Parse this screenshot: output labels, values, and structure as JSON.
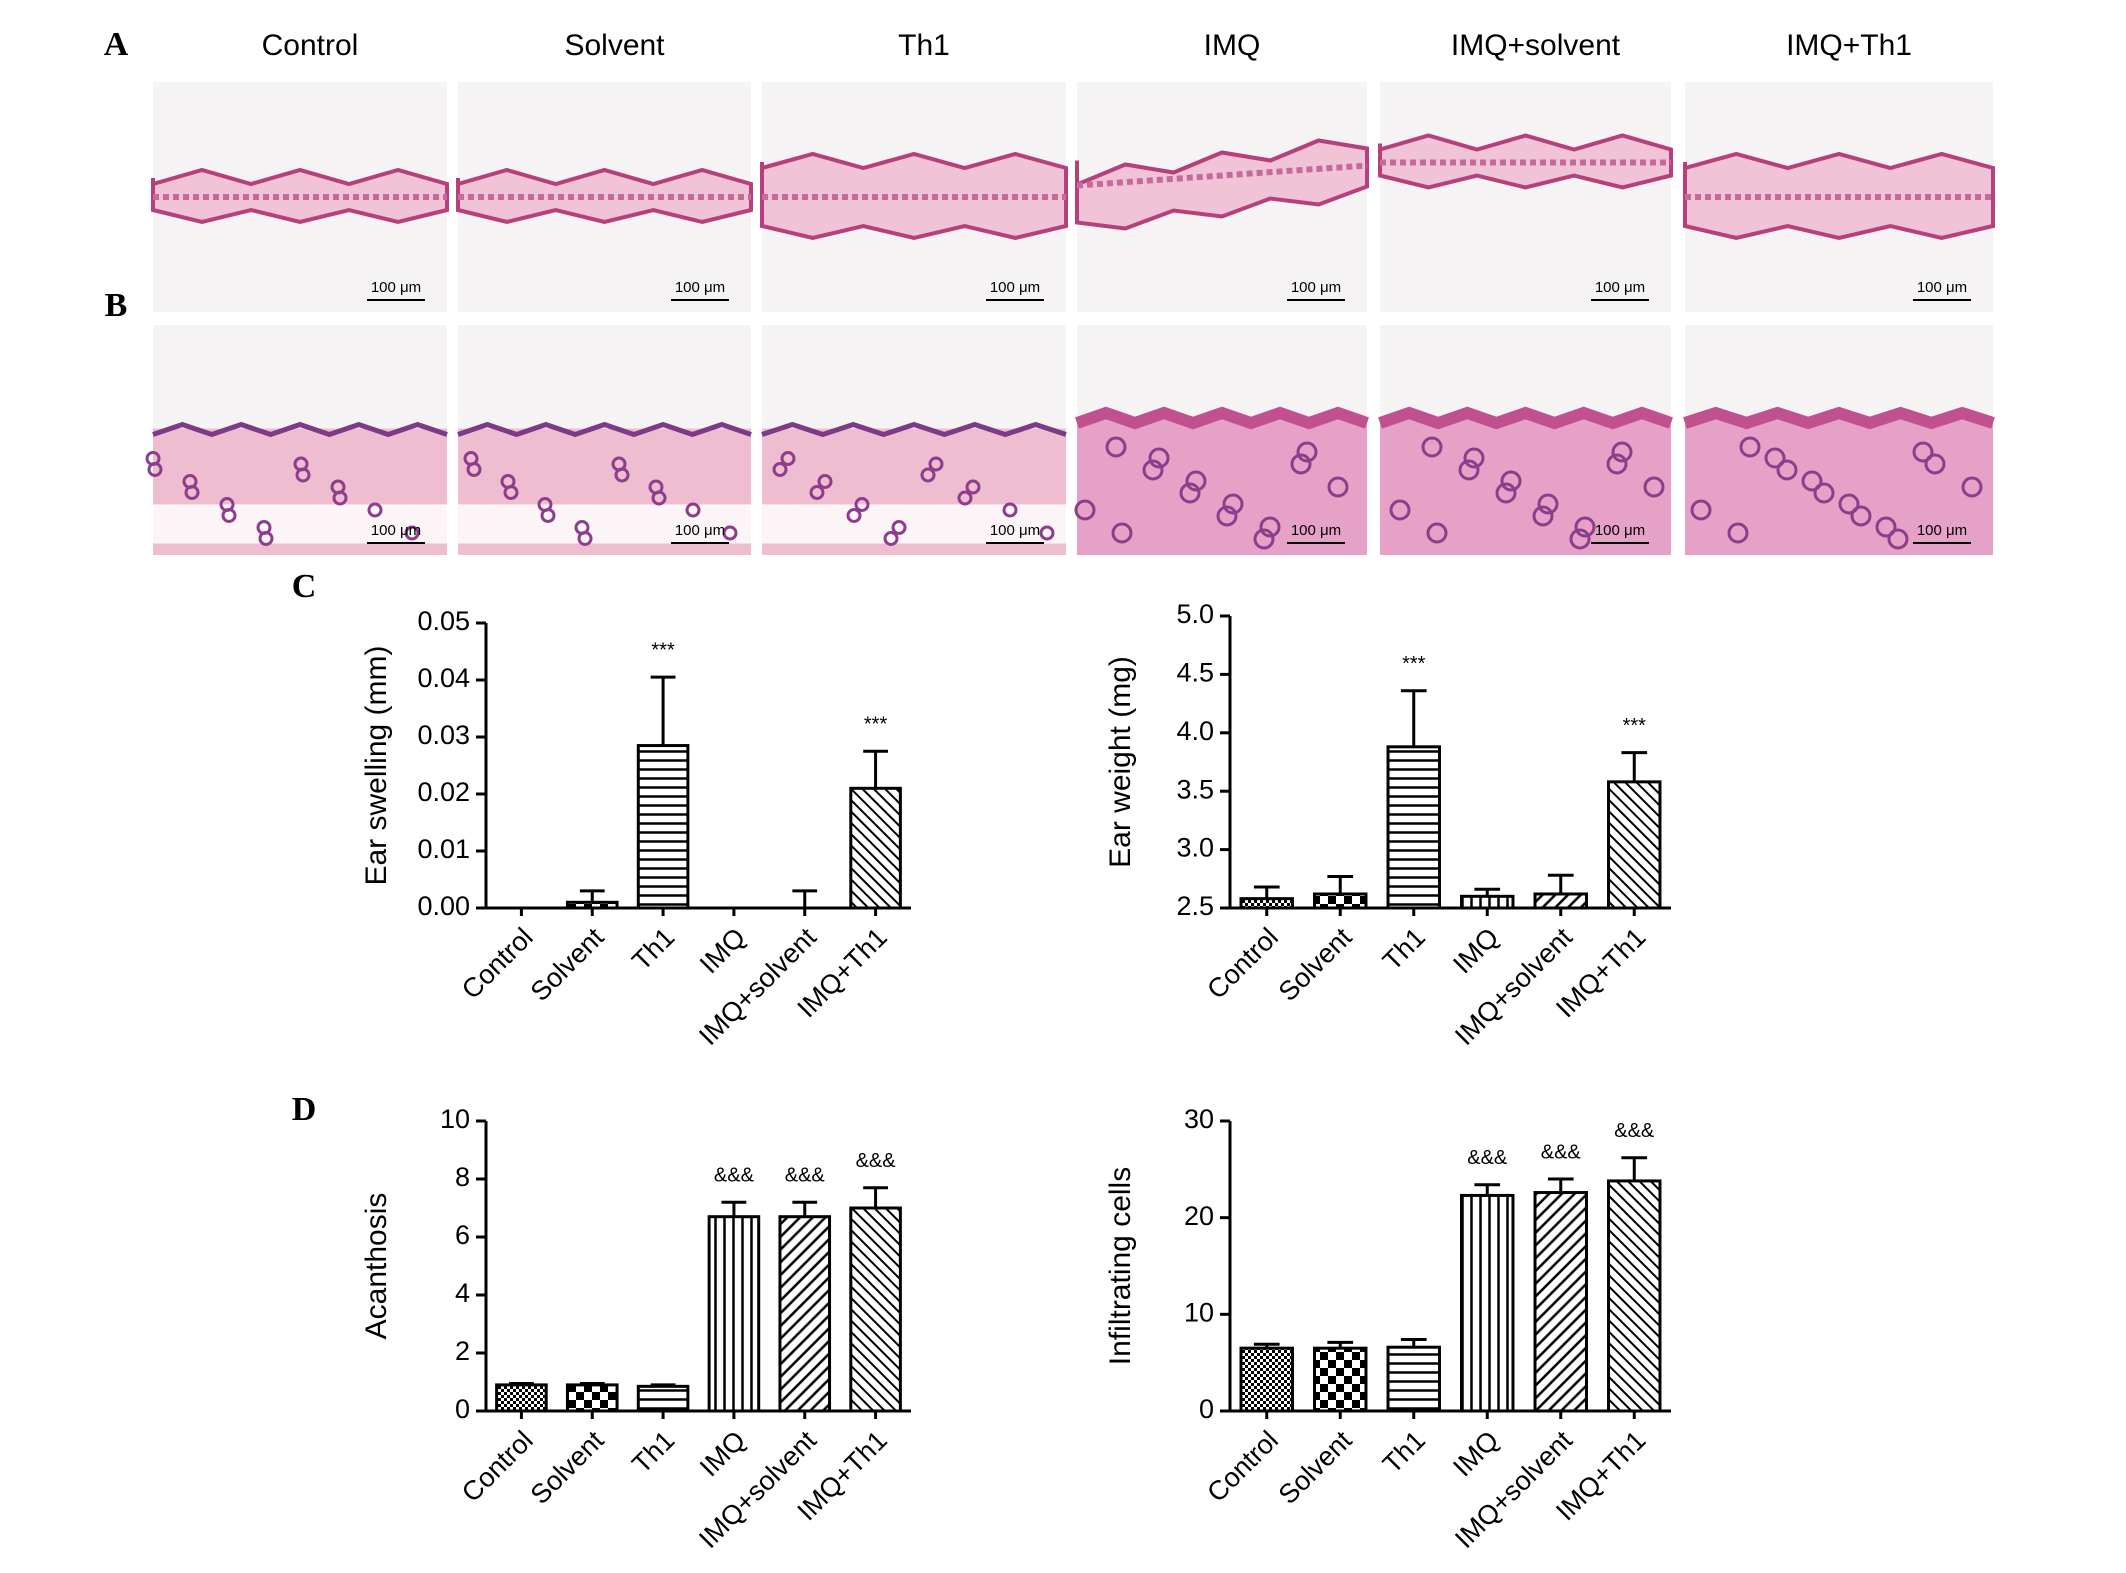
{
  "panel_labels": [
    "A",
    "B",
    "C",
    "D"
  ],
  "columns": [
    "Control",
    "Solvent",
    "Th1",
    "IMQ",
    "IMQ+solvent",
    "IMQ+Th1"
  ],
  "scale_bar": "100 μm",
  "chart_data": [
    {
      "type": "bar",
      "y_label": "Ear swelling (mm)",
      "categories": [
        "Control",
        "Solvent",
        "Th1",
        "IMQ",
        "IMQ+solvent",
        "IMQ+Th1"
      ],
      "values": [
        0,
        0.001,
        0.0285,
        0,
        0,
        0.021
      ],
      "errors": [
        0,
        0.002,
        0.012,
        0,
        0.003,
        0.0065
      ],
      "bar_annotations": [
        null,
        null,
        "***",
        null,
        null,
        "***"
      ],
      "patterns": [
        "crosshatch",
        "checker",
        "horizontal",
        "vertical",
        "diagonal-up",
        "diagonal-down"
      ],
      "color": "#000000",
      "ylim": [
        0,
        0.05
      ],
      "yticks": [
        {
          "value": 0,
          "label": "0.00"
        },
        0.01,
        0.02,
        0.03,
        0.04,
        0.05
      ]
    },
    {
      "type": "bar",
      "y_label": "Ear weight (mg)",
      "categories": [
        "Control",
        "Solvent",
        "Th1",
        "IMQ",
        "IMQ+solvent",
        "IMQ+Th1"
      ],
      "values": [
        2.58,
        2.62,
        3.88,
        2.6,
        2.62,
        3.58
      ],
      "errors": [
        0.1,
        0.15,
        0.48,
        0.06,
        0.16,
        0.25
      ],
      "bar_annotations": [
        null,
        null,
        "***",
        null,
        null,
        "***"
      ],
      "patterns": [
        "crosshatch",
        "checker",
        "horizontal",
        "vertical",
        "diagonal-up",
        "diagonal-down"
      ],
      "color": "#000000",
      "ylim": [
        2.5,
        5.0
      ],
      "yticks": [
        2.5,
        {
          "value": 3,
          "label": "3.0"
        },
        3.5,
        {
          "value": 4,
          "label": "4.0"
        },
        4.5,
        {
          "value": 5,
          "label": "5.0"
        }
      ]
    },
    {
      "type": "bar",
      "y_label": "Acanthosis",
      "categories": [
        "Control",
        "Solvent",
        "Th1",
        "IMQ",
        "IMQ+solvent",
        "IMQ+Th1"
      ],
      "values": [
        0.9,
        0.9,
        0.85,
        6.7,
        6.7,
        7.0
      ],
      "errors": [
        0.05,
        0.05,
        0.05,
        0.5,
        0.5,
        0.7
      ],
      "bar_annotations": [
        null,
        null,
        null,
        "&&&",
        "&&&",
        "&&&"
      ],
      "patterns": [
        "crosshatch",
        "checker",
        "horizontal",
        "vertical",
        "diagonal-up",
        "diagonal-down"
      ],
      "color": "#000000",
      "ylim": [
        0,
        10
      ],
      "yticks": [
        0,
        2,
        4,
        6,
        8,
        10
      ]
    },
    {
      "type": "bar",
      "y_label": "Infiltrating cells",
      "categories": [
        "Control",
        "Solvent",
        "Th1",
        "IMQ",
        "IMQ+solvent",
        "IMQ+Th1"
      ],
      "values": [
        6.5,
        6.5,
        6.6,
        22.3,
        22.6,
        23.8
      ],
      "errors": [
        0.4,
        0.6,
        0.8,
        1.1,
        1.4,
        2.4
      ],
      "bar_annotations": [
        null,
        null,
        null,
        "&&&",
        "&&&",
        "&&&"
      ],
      "patterns": [
        "crosshatch",
        "checker",
        "horizontal",
        "vertical",
        "diagonal-up",
        "diagonal-down"
      ],
      "color": "#000000",
      "ylim": [
        0,
        30
      ],
      "yticks": [
        0,
        10,
        20,
        30
      ]
    }
  ]
}
